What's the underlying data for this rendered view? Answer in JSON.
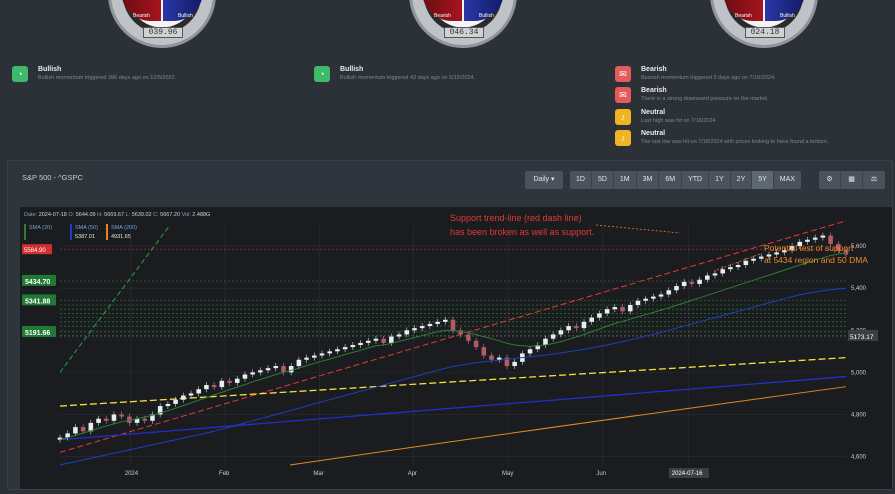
{
  "gauges": [
    {
      "bearish_label": "Bearish",
      "bullish_label": "Bullish",
      "value": "039.96"
    },
    {
      "bearish_label": "Bearish",
      "bullish_label": "Bullish",
      "value": "046.34"
    },
    {
      "bearish_label": "Bearish",
      "bullish_label": "Bullish",
      "value": "024.18"
    }
  ],
  "signals_left": [
    {
      "title": "Bullish",
      "desc": "Bullish momentum triggered 396 days ago on 12/5/2022.",
      "color": "#3fb96a",
      "icon": "gauge-icon"
    }
  ],
  "signals_mid": [
    {
      "title": "Bullish",
      "desc": "Bullish momentum triggered 43 days ago on 5/15/2024.",
      "color": "#3fb96a",
      "icon": "gauge-icon"
    }
  ],
  "signals_right": [
    {
      "title": "Bearish",
      "desc": "Bearish momentum triggered 3 days ago on 7/16/2024.",
      "color": "#e35b5b",
      "icon": "message-icon"
    },
    {
      "title": "Bearish",
      "desc": "There is a strong downward pressure on the market.",
      "color": "#e35b5b",
      "icon": "message-icon"
    },
    {
      "title": "Neutral",
      "desc": "Last high was hit on 7/16/2024",
      "color": "#f0b323",
      "icon": "bell-icon"
    },
    {
      "title": "Neutral",
      "desc": "The last low was hit on 7/18/2024 with prices looking to have found a bottom.",
      "color": "#f0b323",
      "icon": "bell-icon"
    }
  ],
  "panel": {
    "title": "S&P 500 - ^GSPC",
    "interval": "Daily ▾",
    "ranges": [
      "1D",
      "5D",
      "1M",
      "3M",
      "6M",
      "YTD",
      "1Y",
      "2Y",
      "5Y",
      "MAX"
    ],
    "active_range": "5Y",
    "tools": [
      "⚙",
      "▦",
      "⚖"
    ]
  },
  "chart_data": {
    "type": "candlestick",
    "ohlc_header": {
      "date_label": "Date:",
      "date": "2024-07-18",
      "o_label": "O:",
      "open": "5644.09",
      "h_label": "H:",
      "high": "5669.67",
      "l_label": "L:",
      "low": "5639.02",
      "c_label": "C:",
      "close": "5667.20",
      "vol_label": "Vol:",
      "vol": "2.488G"
    },
    "sma_legend": [
      {
        "name": "SMA (20)",
        "value": "5584.90",
        "color": "#2e7d32"
      },
      {
        "name": "SMA (50)",
        "value": "5387.01",
        "color": "#1e3fbf"
      },
      {
        "name": "SMA (200)",
        "value": "4931.65",
        "color": "#e08a1e"
      }
    ],
    "x_ticks": [
      "2024",
      "Feb",
      "Mar",
      "Apr",
      "May",
      "Jun",
      "Jul"
    ],
    "y_ticks": [
      "5,600",
      "5,400",
      "5,200",
      "5,000",
      "4,800",
      "4,600"
    ],
    "y_range": [
      4560,
      5700
    ],
    "price_tags": [
      {
        "value": "5434.70",
        "color": "#1f7a34"
      },
      {
        "value": "5341.88",
        "color": "#1f7a34"
      },
      {
        "value": "5191.66",
        "color": "#1f7a34"
      }
    ],
    "red_tag": "5584.90",
    "last_tag": "5173.17",
    "date_tag": "2024-07-16",
    "annotation_red": [
      "Support trend-line (red dash line)",
      "has been broken as well as support."
    ],
    "annotation_orange": [
      "Potential test of support",
      "at 5434 region and 50 DMA"
    ],
    "closes": [
      4690,
      4710,
      4740,
      4720,
      4760,
      4780,
      4770,
      4800,
      4790,
      4760,
      4780,
      4770,
      4800,
      4840,
      4850,
      4870,
      4890,
      4900,
      4920,
      4940,
      4930,
      4960,
      4950,
      4970,
      4990,
      5000,
      5010,
      5020,
      5030,
      5000,
      5030,
      5060,
      5070,
      5080,
      5090,
      5100,
      5110,
      5120,
      5130,
      5140,
      5150,
      5160,
      5140,
      5170,
      5180,
      5200,
      5210,
      5220,
      5230,
      5240,
      5250,
      5200,
      5180,
      5150,
      5120,
      5080,
      5060,
      5070,
      5030,
      5050,
      5090,
      5110,
      5130,
      5160,
      5180,
      5200,
      5220,
      5210,
      5240,
      5260,
      5280,
      5300,
      5310,
      5290,
      5320,
      5340,
      5350,
      5360,
      5370,
      5390,
      5410,
      5430,
      5420,
      5440,
      5460,
      5470,
      5490,
      5500,
      5510,
      5530,
      5540,
      5550,
      5560,
      5570,
      5580,
      5600,
      5620,
      5630,
      5640,
      5650,
      5610,
      5580,
      5560
    ],
    "sma20": [
      4680,
      4690,
      4700,
      4712,
      4722,
      4735,
      4745,
      4755,
      4765,
      4772,
      4780,
      4788,
      4796,
      4808,
      4818,
      4830,
      4842,
      4855,
      4868,
      4880,
      4893,
      4905,
      4918,
      4930,
      4942,
      4955,
      4966,
      4978,
      4990,
      5000,
      5010,
      5020,
      5032,
      5043,
      5053,
      5063,
      5074,
      5085,
      5095,
      5105,
      5116,
      5126,
      5130,
      5138,
      5147,
      5156,
      5165,
      5175,
      5184,
      5192,
      5200,
      5198,
      5194,
      5188,
      5180,
      5170,
      5160,
      5150,
      5138,
      5130,
      5126,
      5124,
      5126,
      5130,
      5137,
      5146,
      5157,
      5168,
      5180,
      5193,
      5206,
      5220,
      5232,
      5242,
      5253,
      5264,
      5274,
      5285,
      5296,
      5306,
      5318,
      5330,
      5342,
      5354,
      5366,
      5378,
      5390,
      5402,
      5414,
      5426,
      5438,
      5450,
      5462,
      5474,
      5486,
      5498,
      5510,
      5522,
      5533,
      5544,
      5555,
      5562,
      5568
    ],
    "sma50": [
      4560,
      4568,
      4576,
      4584,
      4592,
      4600,
      4608,
      4616,
      4624,
      4632,
      4640,
      4648,
      4656,
      4664,
      4672,
      4680,
      4688,
      4696,
      4704,
      4712,
      4720,
      4730,
      4740,
      4750,
      4760,
      4770,
      4780,
      4790,
      4800,
      4810,
      4820,
      4830,
      4840,
      4850,
      4860,
      4870,
      4880,
      4890,
      4900,
      4910,
      4920,
      4930,
      4940,
      4950,
      4960,
      4970,
      4980,
      4990,
      5000,
      5010,
      5020,
      5028,
      5034,
      5040,
      5046,
      5050,
      5054,
      5058,
      5062,
      5066,
      5070,
      5074,
      5078,
      5082,
      5087,
      5092,
      5098,
      5104,
      5110,
      5116,
      5123,
      5130,
      5138,
      5146,
      5154,
      5163,
      5172,
      5181,
      5190,
      5200,
      5210,
      5220,
      5230,
      5240,
      5250,
      5260,
      5270,
      5280,
      5290,
      5300,
      5310,
      5320,
      5330,
      5340,
      5350,
      5360,
      5368,
      5376,
      5382,
      5388,
      5392,
      5396,
      5400
    ]
  }
}
